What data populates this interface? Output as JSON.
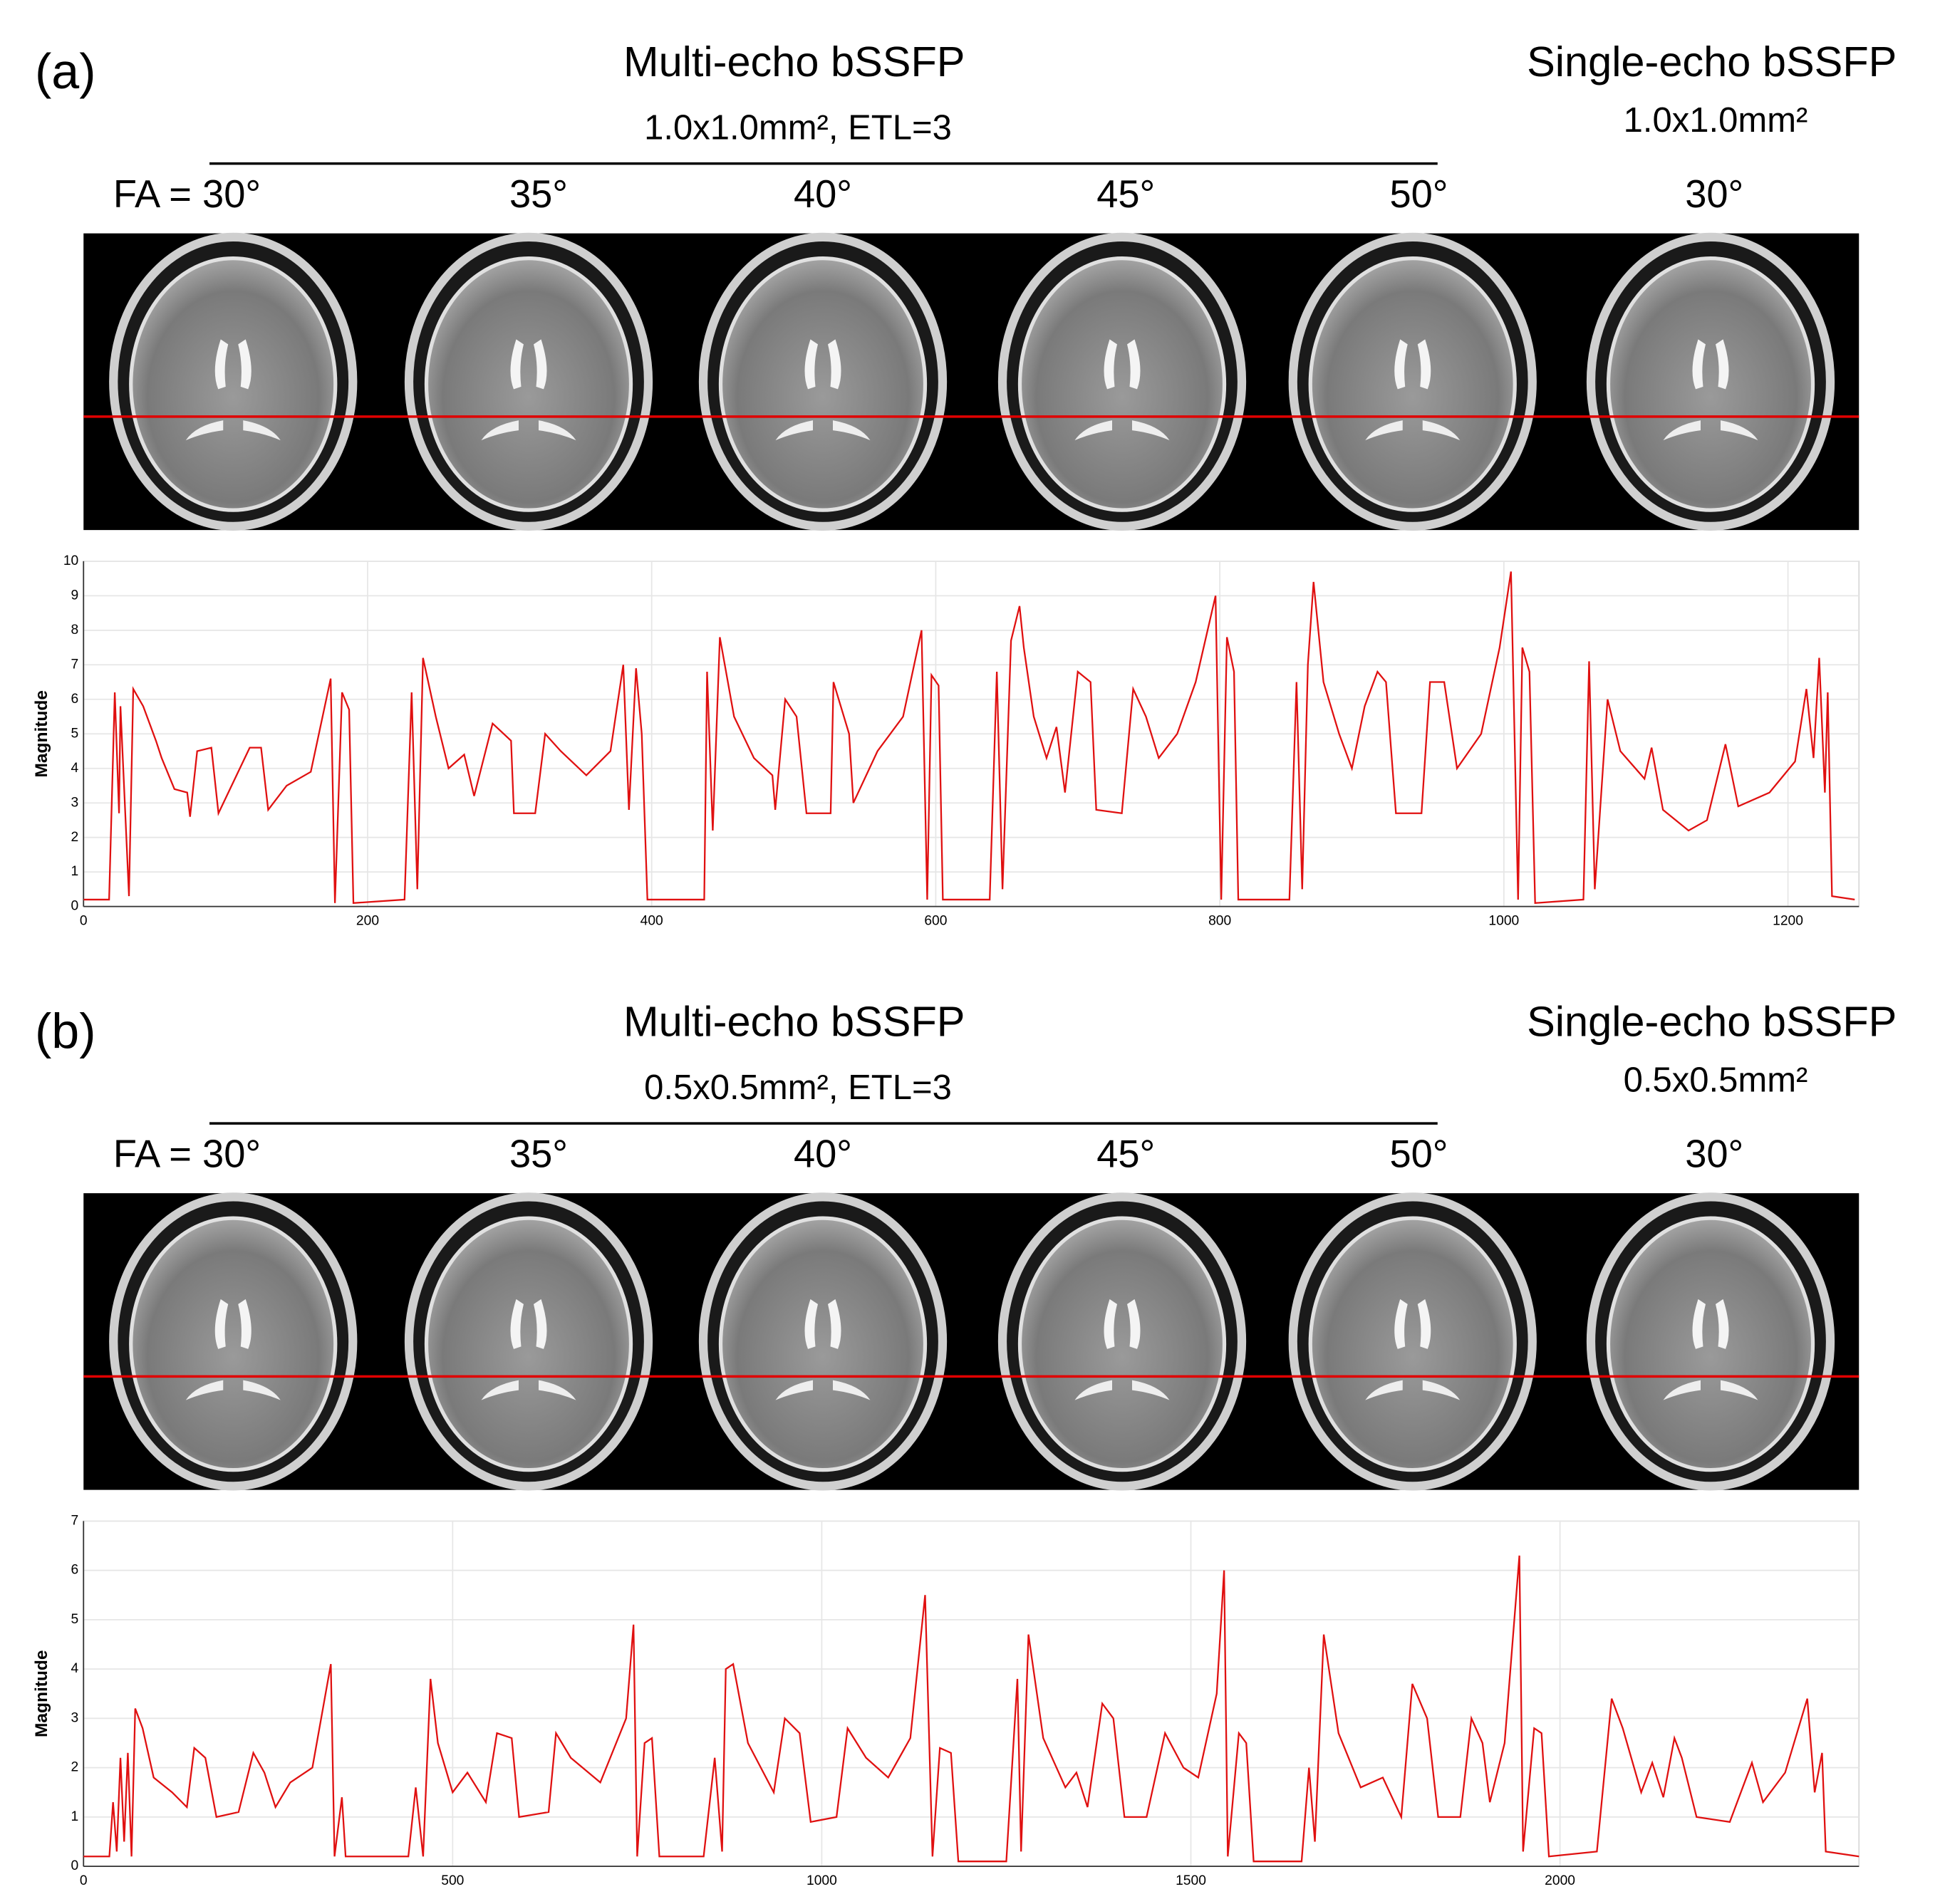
{
  "panels": [
    {
      "label": "(a)",
      "multi_title": "Multi-echo bSSFP",
      "multi_sub": "1.0x1.0mm², ETL=3",
      "single_title": "Single-echo bSSFP",
      "single_sub": "1.0x1.0mm²",
      "flip_angles": [
        "FA = 30°",
        "35°",
        "40°",
        "45°",
        "50°",
        "30°"
      ]
    },
    {
      "label": "(b)",
      "multi_title": "Multi-echo bSSFP",
      "multi_sub": "0.5x0.5mm², ETL=3",
      "single_title": "Single-echo bSSFP",
      "single_sub": "0.5x0.5mm²",
      "flip_angles": [
        "FA = 30°",
        "35°",
        "40°",
        "45°",
        "50°",
        "30°"
      ]
    }
  ],
  "chart_data": [
    {
      "type": "line",
      "ylabel": "Magnitude",
      "color": "#e01010",
      "grid": true,
      "xlim": [
        0,
        1250
      ],
      "ylim": [
        0,
        10
      ],
      "xticks": [
        0,
        200,
        400,
        600,
        800,
        1000,
        1200
      ],
      "yticks": [
        0,
        1,
        2,
        3,
        4,
        5,
        6,
        7,
        8,
        9,
        10
      ],
      "x": [
        0,
        18,
        22,
        25,
        26,
        32,
        35,
        42,
        51,
        55,
        64,
        73,
        75,
        80,
        90,
        95,
        117,
        125,
        130,
        143,
        160,
        174,
        177,
        182,
        187,
        190,
        226,
        231,
        235,
        239,
        248,
        257,
        268,
        275,
        288,
        301,
        303,
        318,
        325,
        336,
        354,
        371,
        380,
        384,
        389,
        393,
        397,
        437,
        439,
        443,
        448,
        458,
        472,
        485,
        487,
        494,
        502,
        509,
        526,
        528,
        539,
        542,
        559,
        577,
        590,
        594,
        597,
        602,
        605,
        638,
        643,
        647,
        653,
        659,
        662,
        669,
        678,
        685,
        691,
        700,
        709,
        713,
        731,
        739,
        748,
        757,
        770,
        783,
        797,
        801,
        805,
        810,
        813,
        849,
        854,
        858,
        862,
        866,
        873,
        884,
        893,
        902,
        911,
        917,
        924,
        942,
        948,
        958,
        967,
        984,
        997,
        1005,
        1010,
        1013,
        1018,
        1022,
        1056,
        1060,
        1064,
        1073,
        1082,
        1099,
        1104,
        1112,
        1130,
        1143,
        1156,
        1165,
        1187,
        1205,
        1213,
        1218,
        1222,
        1226,
        1228,
        1231,
        1247
      ],
      "values": [
        0.2,
        0.2,
        6.2,
        2.7,
        5.8,
        0.3,
        6.3,
        5.8,
        4.8,
        4.3,
        3.4,
        3.3,
        2.6,
        4.5,
        4.6,
        2.7,
        4.6,
        4.6,
        2.8,
        3.5,
        3.9,
        6.6,
        0.1,
        6.2,
        5.7,
        0.1,
        0.2,
        6.2,
        0.5,
        7.2,
        5.5,
        4.0,
        4.4,
        3.2,
        5.3,
        4.8,
        2.7,
        2.7,
        5.0,
        4.5,
        3.8,
        4.5,
        7.0,
        2.8,
        6.9,
        5.0,
        0.2,
        0.2,
        6.8,
        2.2,
        7.8,
        5.5,
        4.3,
        3.8,
        2.8,
        6.0,
        5.5,
        2.7,
        2.7,
        6.5,
        5.0,
        3.0,
        4.5,
        5.5,
        8.0,
        0.2,
        6.7,
        6.4,
        0.2,
        0.2,
        6.8,
        0.5,
        7.7,
        8.7,
        7.5,
        5.5,
        4.3,
        5.2,
        3.3,
        6.8,
        6.5,
        2.8,
        2.7,
        6.3,
        5.5,
        4.3,
        5.0,
        6.5,
        9.0,
        0.2,
        7.8,
        6.8,
        0.2,
        0.2,
        6.5,
        0.5,
        7.0,
        9.4,
        6.5,
        5.0,
        4.0,
        5.8,
        6.8,
        6.5,
        2.7,
        2.7,
        6.5,
        6.5,
        4.0,
        5.0,
        7.5,
        9.7,
        0.2,
        7.5,
        6.8,
        0.1,
        0.2,
        7.1,
        0.5,
        6.0,
        4.5,
        3.7,
        4.6,
        2.8,
        2.2,
        2.5,
        4.7,
        2.9,
        3.3,
        4.2,
        6.3,
        4.3,
        7.2,
        3.3,
        6.2,
        0.3,
        0.2
      ]
    },
    {
      "type": "line",
      "ylabel": "Magnitude",
      "color": "#e01010",
      "grid": true,
      "xlim": [
        0,
        2405
      ],
      "ylim": [
        0,
        7
      ],
      "xticks": [
        0,
        500,
        1000,
        1500,
        2000
      ],
      "yticks": [
        0,
        1,
        2,
        3,
        4,
        5,
        6,
        7
      ],
      "x": [
        0,
        35,
        40,
        45,
        50,
        55,
        60,
        65,
        70,
        80,
        95,
        120,
        140,
        150,
        165,
        180,
        210,
        230,
        245,
        260,
        280,
        310,
        335,
        340,
        350,
        355,
        440,
        450,
        460,
        470,
        480,
        500,
        520,
        545,
        560,
        580,
        590,
        630,
        640,
        660,
        700,
        735,
        745,
        750,
        760,
        770,
        780,
        840,
        855,
        865,
        870,
        880,
        900,
        935,
        950,
        970,
        985,
        1020,
        1035,
        1060,
        1090,
        1120,
        1140,
        1150,
        1160,
        1175,
        1185,
        1250,
        1265,
        1270,
        1280,
        1300,
        1330,
        1345,
        1360,
        1380,
        1395,
        1410,
        1440,
        1465,
        1490,
        1510,
        1535,
        1545,
        1550,
        1565,
        1575,
        1585,
        1650,
        1660,
        1668,
        1680,
        1700,
        1730,
        1760,
        1785,
        1800,
        1820,
        1835,
        1865,
        1880,
        1895,
        1905,
        1925,
        1945,
        1950,
        1965,
        1975,
        1985,
        2050,
        2070,
        2085,
        2110,
        2125,
        2140,
        2155,
        2165,
        2185,
        2230,
        2260,
        2275,
        2305,
        2335,
        2345,
        2355,
        2360,
        2405
      ],
      "values": [
        0.2,
        0.2,
        1.3,
        0.3,
        2.2,
        0.5,
        2.3,
        0.2,
        3.2,
        2.8,
        1.8,
        1.5,
        1.2,
        2.4,
        2.2,
        1.0,
        1.1,
        2.3,
        1.9,
        1.2,
        1.7,
        2.0,
        4.1,
        0.2,
        1.4,
        0.2,
        0.2,
        1.6,
        0.2,
        3.8,
        2.5,
        1.5,
        1.9,
        1.3,
        2.7,
        2.6,
        1.0,
        1.1,
        2.7,
        2.2,
        1.7,
        3.0,
        4.9,
        0.2,
        2.5,
        2.6,
        0.2,
        0.2,
        2.2,
        0.3,
        4.0,
        4.1,
        2.5,
        1.5,
        3.0,
        2.7,
        0.9,
        1.0,
        2.8,
        2.2,
        1.8,
        2.6,
        5.5,
        0.2,
        2.4,
        2.3,
        0.1,
        0.1,
        3.8,
        0.3,
        4.7,
        2.6,
        1.6,
        1.9,
        1.2,
        3.3,
        3.0,
        1.0,
        1.0,
        2.7,
        2.0,
        1.8,
        3.5,
        6.0,
        0.2,
        2.7,
        2.5,
        0.1,
        0.1,
        2.0,
        0.5,
        4.7,
        2.7,
        1.6,
        1.8,
        1.0,
        3.7,
        3.0,
        1.0,
        1.0,
        3.0,
        2.5,
        1.3,
        2.5,
        6.3,
        0.3,
        2.8,
        2.7,
        0.2,
        0.3,
        3.4,
        2.8,
        1.5,
        2.1,
        1.4,
        2.6,
        2.2,
        1.0,
        0.9,
        2.1,
        1.3,
        1.9,
        3.4,
        1.5,
        2.3,
        0.3,
        0.2
      ]
    }
  ]
}
